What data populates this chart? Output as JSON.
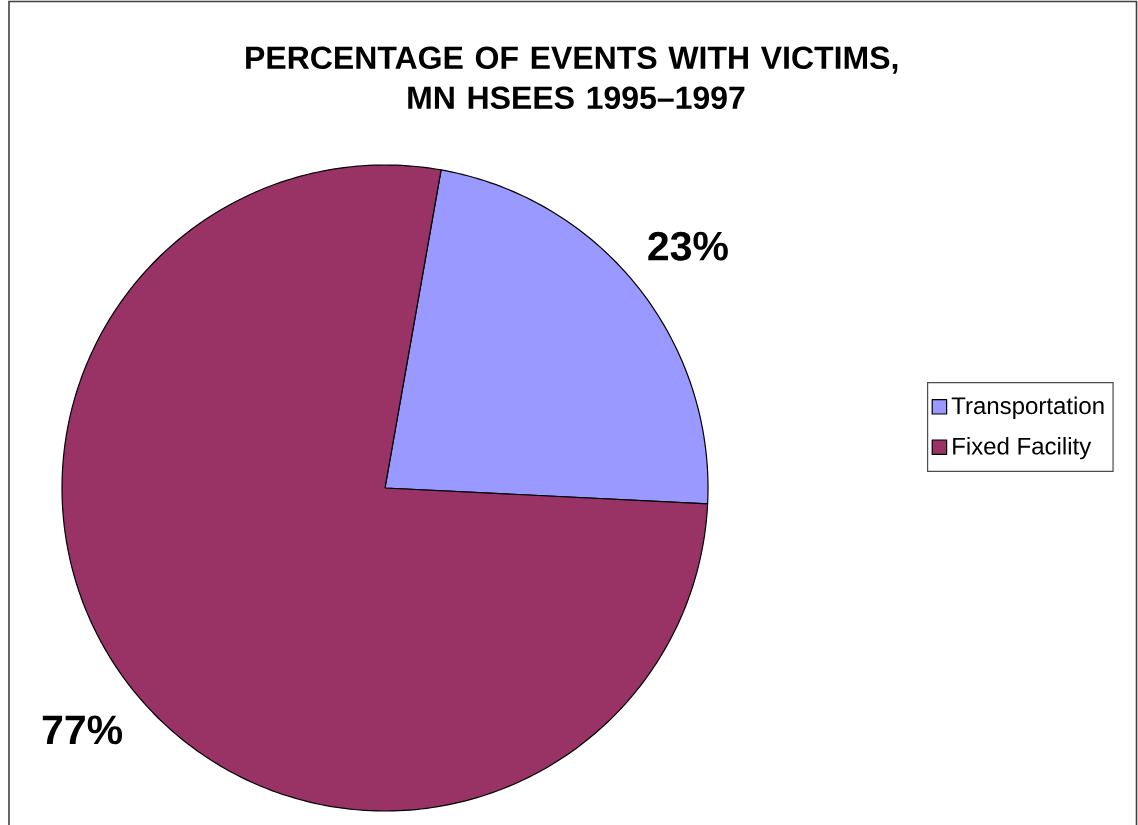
{
  "chart_data": {
    "type": "pie",
    "title": "PERCENTAGE OF EVENTS WITH VICTIMS, MN HSEES 1995–1997",
    "categories": [
      "Transportation",
      "Fixed Facility"
    ],
    "values": [
      23,
      77
    ],
    "colors": [
      "#9999ff",
      "#993366"
    ],
    "value_labels": [
      "23%",
      "77%"
    ],
    "legend": "right"
  }
}
